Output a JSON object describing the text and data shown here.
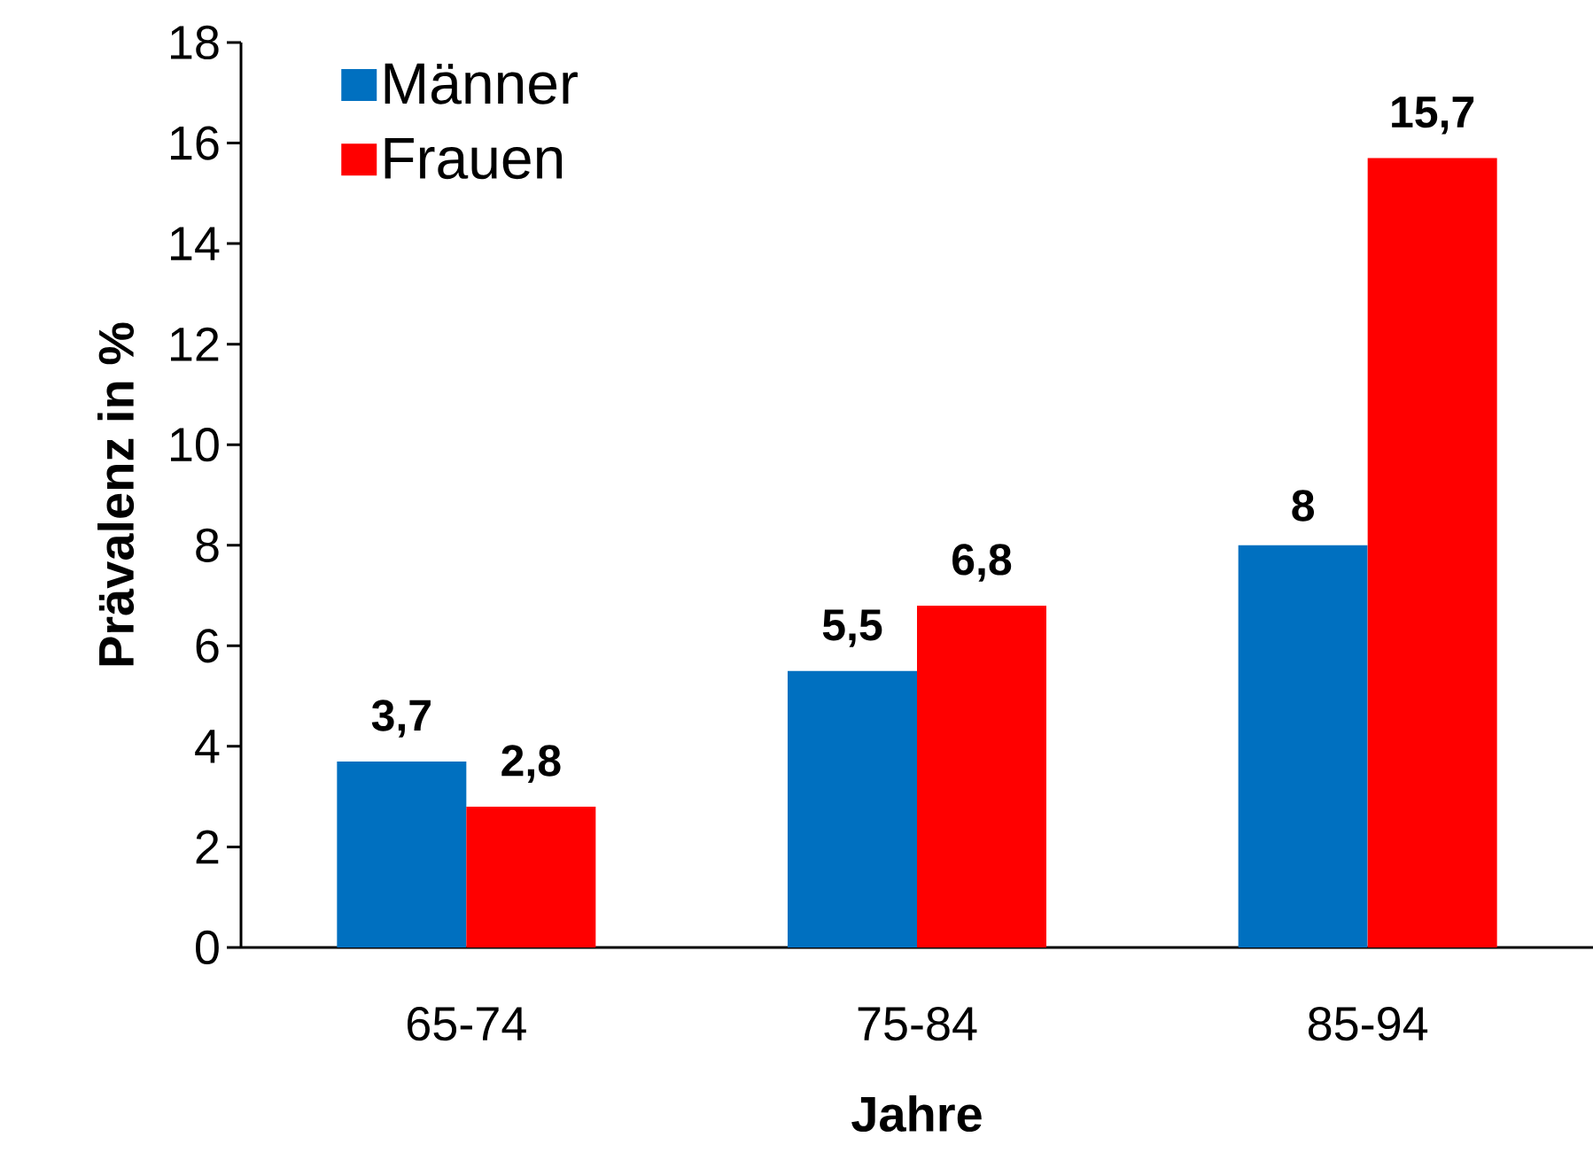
{
  "chart_data": {
    "type": "bar",
    "xlabel": "Jahre",
    "ylabel": "Prävalenz in %",
    "categories": [
      "65-74",
      "75-84",
      "85-94"
    ],
    "series": [
      {
        "name": "Männer",
        "color": "#0070c0",
        "values": [
          3.7,
          5.5,
          8
        ],
        "value_labels": [
          "3,7",
          "5,5",
          "8"
        ]
      },
      {
        "name": "Frauen",
        "color": "#ff0000",
        "values": [
          2.8,
          6.8,
          15.7
        ],
        "value_labels": [
          "2,8",
          "6,8",
          "15,7"
        ]
      }
    ],
    "ylim": [
      0,
      18
    ],
    "yticks": [
      0,
      2,
      4,
      6,
      8,
      10,
      12,
      14,
      16,
      18
    ],
    "grid": false,
    "legend": "top left"
  }
}
